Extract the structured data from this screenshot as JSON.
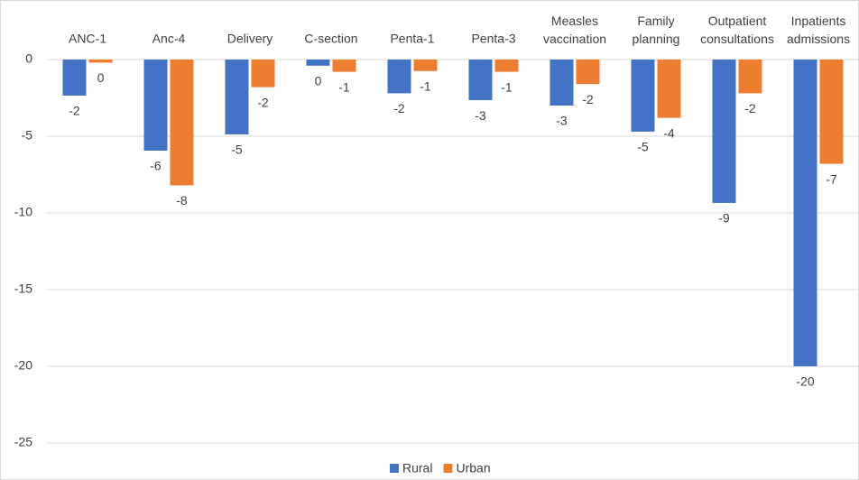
{
  "chart_data": {
    "type": "bar",
    "categories": [
      "ANC-1",
      "Anc-4",
      "Delivery",
      "C-section",
      "Penta-1",
      "Penta-3",
      "Measles vaccination",
      "Family planning",
      "Outpatient consultations",
      "Inpatients admissions"
    ],
    "series": [
      {
        "name": "Rural",
        "color": "#4472c4",
        "values": [
          -2.35,
          -5.94,
          -4.88,
          -0.4,
          -2.2,
          -2.65,
          -3.0,
          -4.7,
          -9.35,
          -20.0
        ],
        "value_labels": [
          "-2",
          "-6",
          "-5",
          "0",
          "-2",
          "-3",
          "-3",
          "-5",
          "-9",
          "-20"
        ]
      },
      {
        "name": "Urban",
        "color": "#ed7d31",
        "values": [
          -0.2,
          -8.2,
          -1.8,
          -0.8,
          -0.75,
          -0.8,
          -1.6,
          -3.8,
          -2.2,
          -6.8
        ],
        "value_labels": [
          "0",
          "-8",
          "-2",
          "-1",
          "-1",
          "-1",
          "-2",
          "-4",
          "-2",
          "-7"
        ]
      }
    ],
    "ylim": [
      -25,
      0
    ],
    "yticks": [
      0,
      -5,
      -10,
      -15,
      -20,
      -25
    ],
    "grid": true,
    "legend": "bottom"
  }
}
